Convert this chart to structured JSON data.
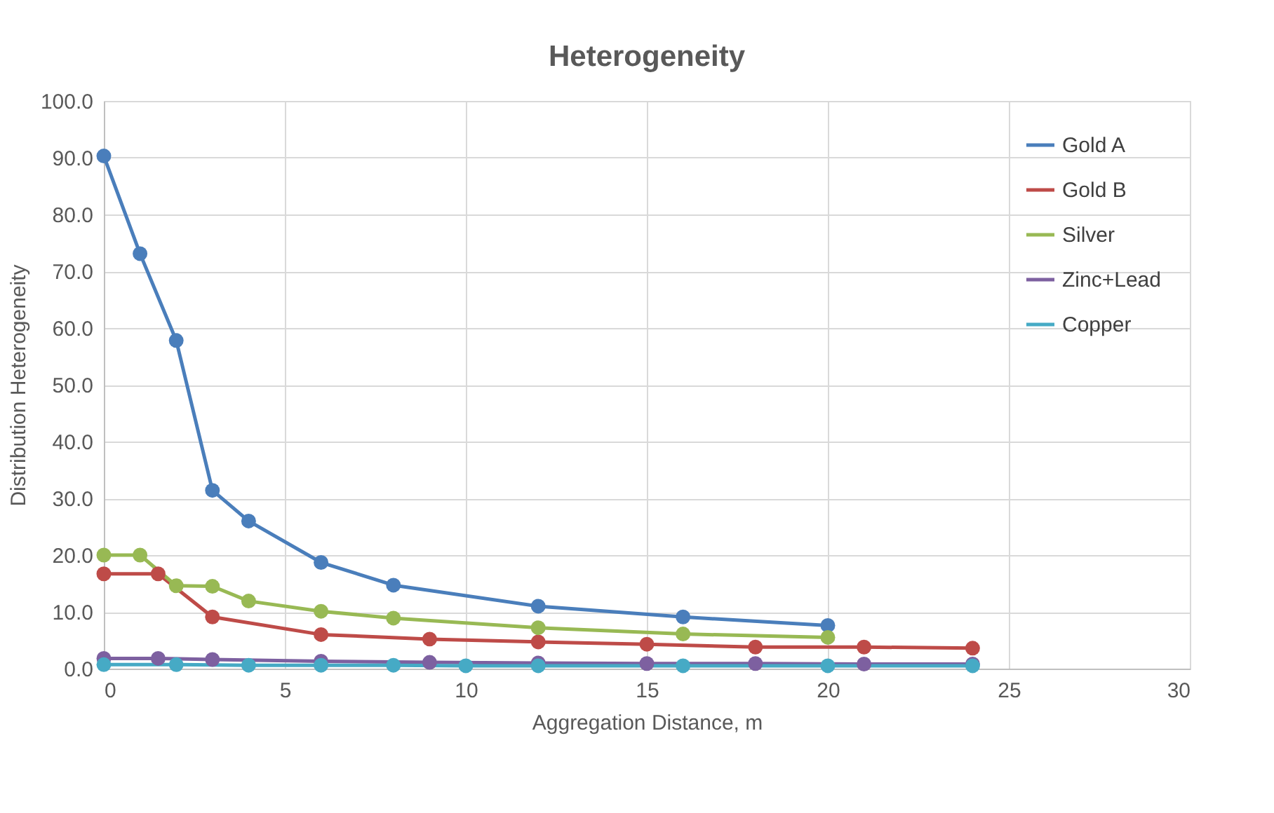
{
  "chart_data": {
    "type": "line",
    "title": "Heterogeneity",
    "xlabel": "Aggregation Distance, m",
    "ylabel": "Distribution Heterogeneity",
    "xlim": [
      0,
      30
    ],
    "xticks": [
      0,
      5,
      10,
      15,
      20,
      25,
      30
    ],
    "ylim": [
      0,
      100
    ],
    "yticks": [
      {
        "value": 0,
        "label": "0.0"
      },
      {
        "value": 10,
        "label": "10.0"
      },
      {
        "value": 20,
        "label": "20.0"
      },
      {
        "value": 30,
        "label": "30.0"
      },
      {
        "value": 40,
        "label": "40.0"
      },
      {
        "value": 50,
        "label": "50.0"
      },
      {
        "value": 60,
        "label": "60.0"
      },
      {
        "value": 70,
        "label": "70.0"
      },
      {
        "value": 80,
        "label": "80.0"
      },
      {
        "value": 90,
        "label": "90.0"
      },
      {
        "value": 100,
        "label": "100.0"
      }
    ],
    "grid": true,
    "legend": "top right",
    "marker": "circle",
    "line_style": "solid",
    "series": [
      {
        "name": "Gold A",
        "color": "#4a7ebb",
        "x": [
          0,
          1,
          2,
          3,
          4,
          6,
          8,
          12,
          16,
          20
        ],
        "values": [
          90.3,
          73.1,
          57.8,
          31.4,
          26.0,
          18.7,
          14.7,
          11.0,
          9.1,
          7.6
        ]
      },
      {
        "name": "Gold B",
        "color": "#be4b48",
        "x": [
          0,
          1.5,
          3,
          6,
          9,
          12,
          15,
          18,
          21,
          24
        ],
        "values": [
          16.7,
          16.7,
          9.1,
          6.0,
          5.2,
          4.7,
          4.3,
          3.8,
          3.8,
          3.6
        ]
      },
      {
        "name": "Silver",
        "color": "#98b954",
        "x": [
          0,
          1,
          2,
          3,
          4,
          6,
          8,
          12,
          16,
          20
        ],
        "values": [
          20.0,
          20.0,
          14.6,
          14.5,
          11.9,
          10.1,
          8.9,
          7.2,
          6.1,
          5.5
        ]
      },
      {
        "name": "Zinc+Lead",
        "color": "#7d60a0",
        "x": [
          0,
          1.5,
          3,
          6,
          9,
          12,
          15,
          18,
          21,
          24
        ],
        "values": [
          1.8,
          1.8,
          1.6,
          1.3,
          1.1,
          1.0,
          0.9,
          0.9,
          0.8,
          0.8
        ]
      },
      {
        "name": "Copper",
        "color": "#46aac5",
        "x": [
          0,
          2,
          4,
          6,
          8,
          10,
          12,
          16,
          20,
          24
        ],
        "values": [
          0.7,
          0.7,
          0.6,
          0.6,
          0.6,
          0.5,
          0.5,
          0.5,
          0.5,
          0.5
        ]
      }
    ]
  }
}
